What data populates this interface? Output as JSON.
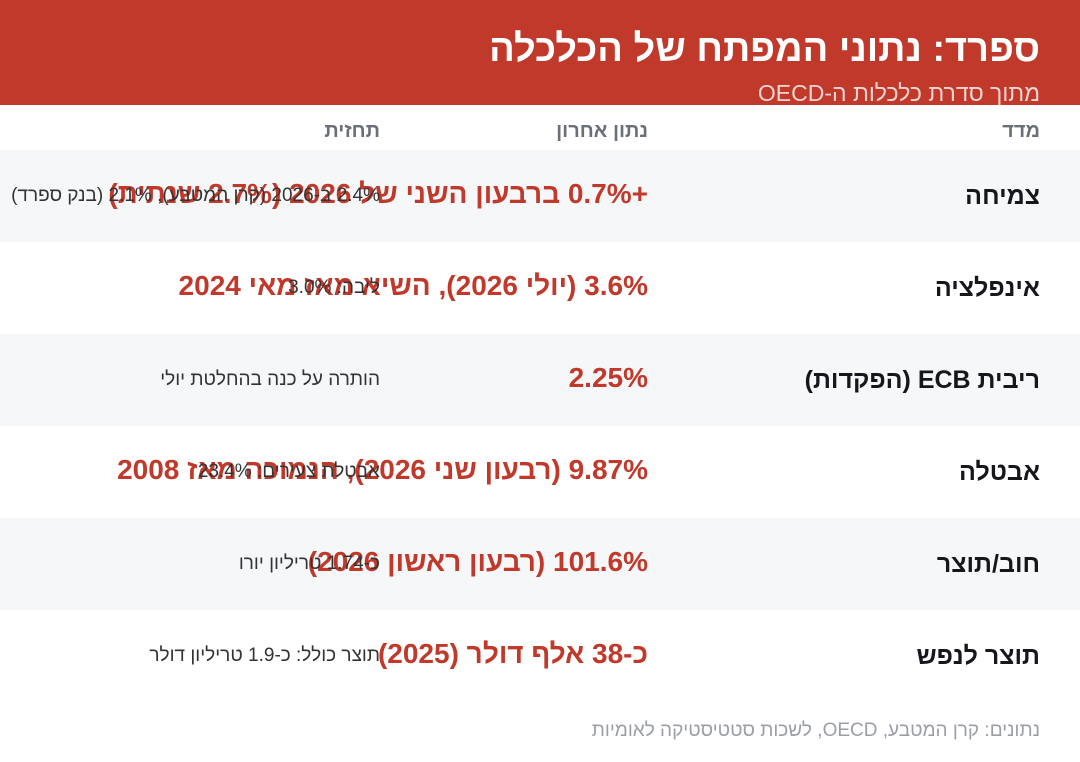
{
  "header": {
    "title": "ספרד: נתוני המפתח של הכלכלה",
    "subtitle": "מתוך סדרת כלכלות ה-OECD"
  },
  "table": {
    "columns": [
      "מדד",
      "נתון אחרון",
      "תחזית"
    ],
    "rows": [
      [
        "צמיחה",
        "+0.7% ברבעון השני של 2026 (2.7% שנתית)",
        "2.4% ב-2026 (קרן המטבע), 2.1% (בנק ספרד)"
      ],
      [
        "אינפלציה",
        "3.6% (יולי 2026), השיא מאז מאי 2024",
        "ליבה: 3.0%"
      ],
      [
        "ריבית ECB (הפקדות)",
        "2.25%",
        "הותרה על כנה בהחלטת יולי"
      ],
      [
        "אבטלה",
        "9.87% (רבעון שני 2026), הנמוכה מאז 2008",
        "אבטלת צעירים: 23.4%"
      ],
      [
        "חוב/תוצר",
        "101.6% (רבעון ראשון 2026)",
        "כ-1.74 טריליון יורו"
      ],
      [
        "תוצר לנפש",
        "כ-38 אלף דולר (2025)",
        "תוצר כולל: כ-1.9 טריליון דולר"
      ]
    ]
  },
  "footer": "נתונים: קרן המטבע, OECD, לשכות סטטיסטיקה לאומיות"
}
